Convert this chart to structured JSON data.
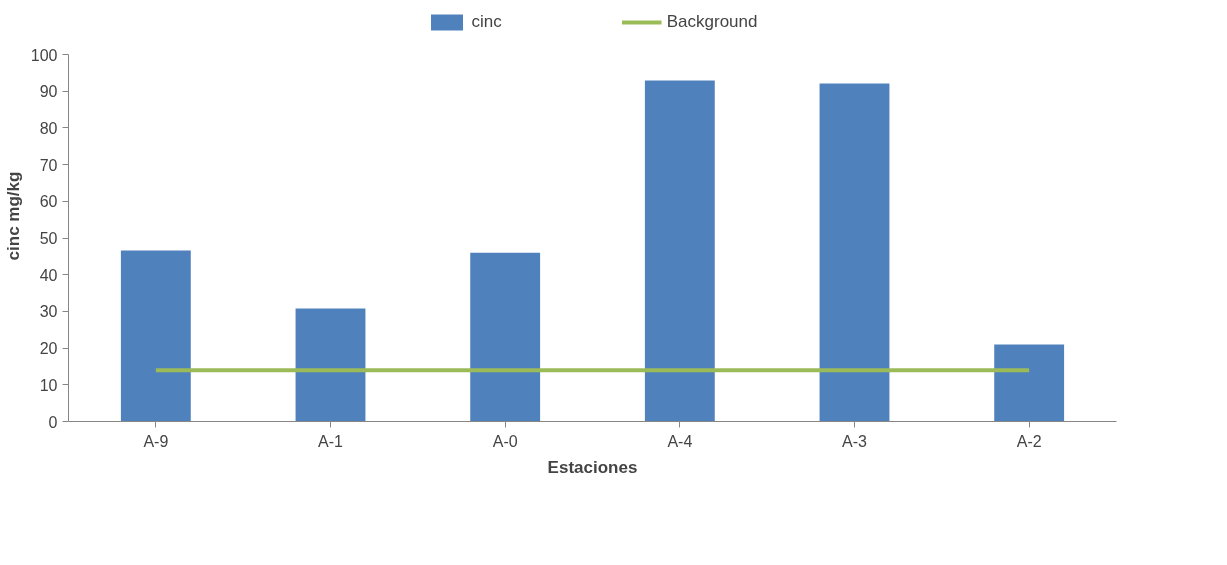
{
  "chart_data": {
    "type": "bar",
    "xlabel": "Estaciones",
    "ylabel": "cinc mg/kg",
    "categories": [
      "A-9",
      "A-1",
      "A-0",
      "A-4",
      "A-3",
      "A-2"
    ],
    "series": [
      {
        "name": "cinc",
        "color": "#4f81bd",
        "values": [
          46.6,
          30.8,
          46.0,
          92.9,
          92.1,
          21.0
        ]
      },
      {
        "name": "Background",
        "type": "line",
        "color": "#9bbb59",
        "values": [
          14,
          14,
          14,
          14,
          14,
          14
        ]
      }
    ],
    "ylim": [
      0,
      100
    ],
    "yticks": [
      0,
      10,
      20,
      30,
      40,
      50,
      60,
      70,
      80,
      90,
      100
    ],
    "grid": false,
    "legend": "top"
  }
}
